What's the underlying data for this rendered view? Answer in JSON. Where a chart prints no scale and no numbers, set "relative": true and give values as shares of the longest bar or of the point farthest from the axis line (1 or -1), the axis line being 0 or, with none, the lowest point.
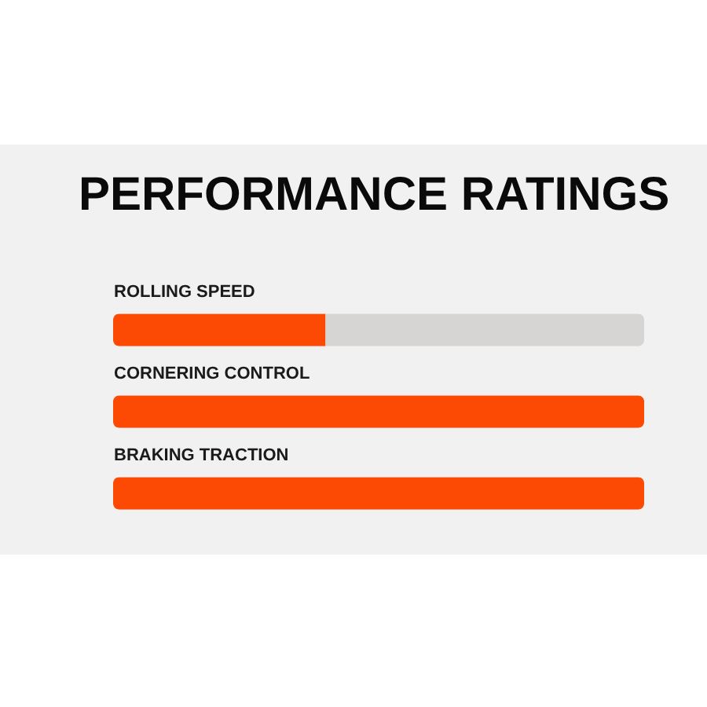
{
  "chart_data": {
    "type": "bar",
    "title": "PERFORMANCE RATINGS",
    "orientation": "horizontal",
    "stacked": true,
    "relative": true,
    "categories": [
      "ROLLING SPEED",
      "CORNERING CONTROL",
      "BRAKING TRACTION"
    ],
    "series": [
      {
        "color": "#fc4a04",
        "values": [
          0.4,
          1,
          1
        ]
      },
      {
        "color": "#d6d5d3",
        "values": [
          0.6,
          0,
          0
        ]
      }
    ]
  }
}
